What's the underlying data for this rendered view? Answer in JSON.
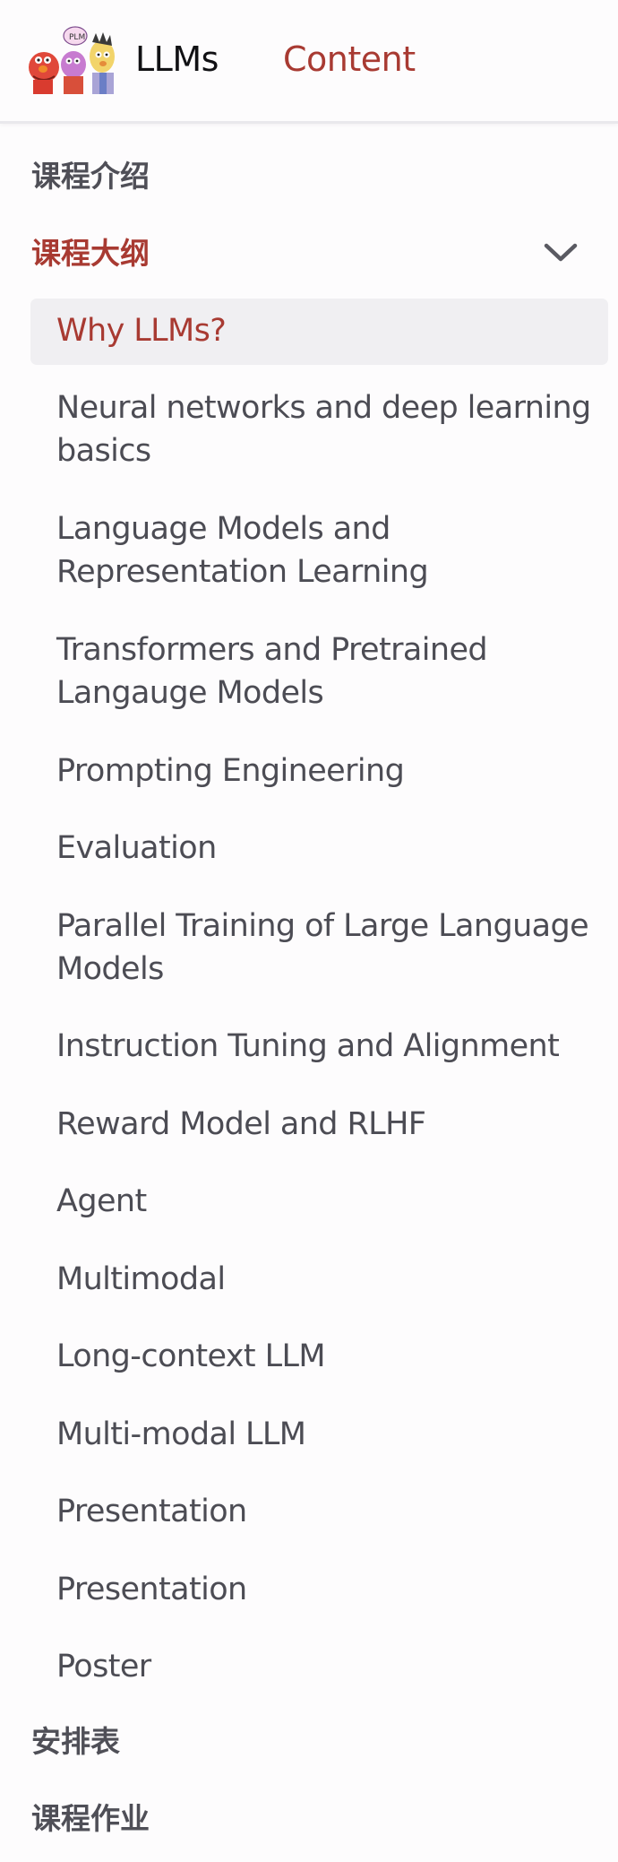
{
  "header": {
    "brand": "LLMs",
    "nav_content": "Content"
  },
  "sidebar": {
    "sections": [
      {
        "label": "课程介绍"
      },
      {
        "label": "课程大纲"
      },
      {
        "label": "安排表"
      },
      {
        "label": "课程作业"
      }
    ],
    "syllabus_items": [
      {
        "label": "Why LLMs?"
      },
      {
        "label": "Neural networks and deep learning basics"
      },
      {
        "label": "Language Models and Representation Learning"
      },
      {
        "label": "Transformers and Pretrained Langauge Models"
      },
      {
        "label": "Prompting Engineering"
      },
      {
        "label": "Evaluation"
      },
      {
        "label": "Parallel Training of Large Language Models"
      },
      {
        "label": "Instruction Tuning and Alignment"
      },
      {
        "label": "Reward Model and RLHF"
      },
      {
        "label": "Agent"
      },
      {
        "label": "Multimodal"
      },
      {
        "label": "Long-context LLM"
      },
      {
        "label": "Multi-modal LLM"
      },
      {
        "label": "Presentation"
      },
      {
        "label": "Presentation"
      },
      {
        "label": "Poster"
      }
    ]
  },
  "colors": {
    "accent": "#a83a32",
    "text": "#4c4c54",
    "active_background": "#f0eff2"
  },
  "icons": {
    "logo": "muppet-characters-logo",
    "expand": "chevron-down-icon"
  }
}
